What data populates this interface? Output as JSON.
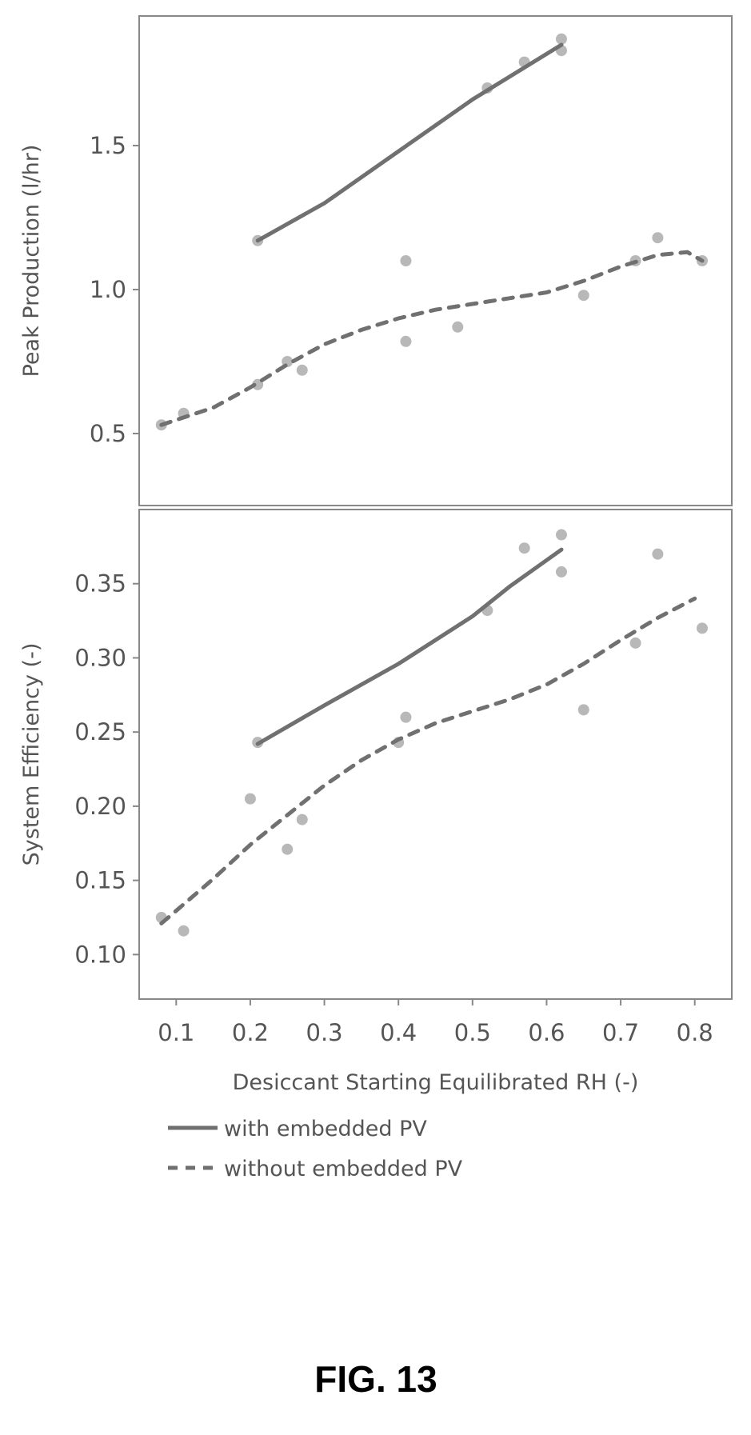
{
  "figure_caption": "FIG. 13",
  "colors": {
    "line": "#707070",
    "points": "#b0b0b0",
    "frame": "#888888",
    "text": "#555555"
  },
  "chart_data": [
    {
      "type": "scatter",
      "title": "",
      "xlabel": "Desiccant Starting Equilibrated RH (-)",
      "ylabel": "Peak Production (l/hr)",
      "xlim": [
        0.05,
        0.85
      ],
      "ylim": [
        0.25,
        1.95
      ],
      "xticks": [
        "0.1",
        "0.2",
        "0.3",
        "0.4",
        "0.5",
        "0.6",
        "0.7",
        "0.8"
      ],
      "yticks": [
        "0.5",
        "1.0",
        "1.5"
      ],
      "grid": false,
      "series": [
        {
          "name": "with embedded PV",
          "line_style": "solid",
          "points": [
            [
              0.21,
              1.17
            ],
            [
              0.52,
              1.7
            ],
            [
              0.57,
              1.79
            ],
            [
              0.62,
              1.83
            ],
            [
              0.62,
              1.87
            ]
          ],
          "fit": [
            [
              0.21,
              1.17
            ],
            [
              0.3,
              1.3
            ],
            [
              0.4,
              1.48
            ],
            [
              0.5,
              1.66
            ],
            [
              0.62,
              1.85
            ]
          ]
        },
        {
          "name": "without embedded PV",
          "line_style": "dashed",
          "points": [
            [
              0.08,
              0.53
            ],
            [
              0.11,
              0.57
            ],
            [
              0.21,
              0.67
            ],
            [
              0.25,
              0.75
            ],
            [
              0.27,
              0.72
            ],
            [
              0.41,
              0.82
            ],
            [
              0.41,
              1.1
            ],
            [
              0.48,
              0.87
            ],
            [
              0.65,
              0.98
            ],
            [
              0.72,
              1.1
            ],
            [
              0.75,
              1.18
            ],
            [
              0.81,
              1.1
            ]
          ],
          "fit": [
            [
              0.08,
              0.53
            ],
            [
              0.15,
              0.59
            ],
            [
              0.2,
              0.66
            ],
            [
              0.25,
              0.74
            ],
            [
              0.3,
              0.81
            ],
            [
              0.35,
              0.86
            ],
            [
              0.4,
              0.9
            ],
            [
              0.45,
              0.93
            ],
            [
              0.5,
              0.95
            ],
            [
              0.55,
              0.97
            ],
            [
              0.6,
              0.99
            ],
            [
              0.65,
              1.03
            ],
            [
              0.7,
              1.08
            ],
            [
              0.75,
              1.12
            ],
            [
              0.79,
              1.13
            ],
            [
              0.81,
              1.1
            ]
          ]
        }
      ]
    },
    {
      "type": "scatter",
      "title": "",
      "xlabel": "Desiccant Starting Equilibrated RH (-)",
      "ylabel": "System Efficiency (-)",
      "xlim": [
        0.05,
        0.85
      ],
      "ylim": [
        0.07,
        0.4
      ],
      "xticks": [
        "0.1",
        "0.2",
        "0.3",
        "0.4",
        "0.5",
        "0.6",
        "0.7",
        "0.8"
      ],
      "yticks": [
        "0.10",
        "0.15",
        "0.20",
        "0.25",
        "0.30",
        "0.35"
      ],
      "grid": false,
      "series": [
        {
          "name": "with embedded PV",
          "line_style": "solid",
          "points": [
            [
              0.21,
              0.243
            ],
            [
              0.52,
              0.332
            ],
            [
              0.57,
              0.374
            ],
            [
              0.62,
              0.358
            ],
            [
              0.62,
              0.383
            ]
          ],
          "fit": [
            [
              0.21,
              0.242
            ],
            [
              0.3,
              0.268
            ],
            [
              0.4,
              0.296
            ],
            [
              0.5,
              0.328
            ],
            [
              0.55,
              0.348
            ],
            [
              0.62,
              0.373
            ]
          ]
        },
        {
          "name": "without embedded PV",
          "line_style": "dashed",
          "points": [
            [
              0.08,
              0.125
            ],
            [
              0.11,
              0.116
            ],
            [
              0.2,
              0.205
            ],
            [
              0.25,
              0.171
            ],
            [
              0.27,
              0.191
            ],
            [
              0.4,
              0.243
            ],
            [
              0.41,
              0.26
            ],
            [
              0.65,
              0.265
            ],
            [
              0.72,
              0.31
            ],
            [
              0.75,
              0.37
            ],
            [
              0.81,
              0.32
            ]
          ],
          "fit": [
            [
              0.08,
              0.121
            ],
            [
              0.15,
              0.151
            ],
            [
              0.2,
              0.174
            ],
            [
              0.25,
              0.194
            ],
            [
              0.3,
              0.214
            ],
            [
              0.35,
              0.231
            ],
            [
              0.4,
              0.245
            ],
            [
              0.45,
              0.256
            ],
            [
              0.5,
              0.264
            ],
            [
              0.55,
              0.272
            ],
            [
              0.6,
              0.282
            ],
            [
              0.65,
              0.296
            ],
            [
              0.7,
              0.312
            ],
            [
              0.75,
              0.327
            ],
            [
              0.8,
              0.34
            ]
          ]
        }
      ]
    }
  ],
  "legend": {
    "placement": "bottom-left",
    "items": [
      {
        "label": "with embedded PV",
        "line_style": "solid"
      },
      {
        "label": "without embedded PV",
        "line_style": "dashed"
      }
    ]
  }
}
